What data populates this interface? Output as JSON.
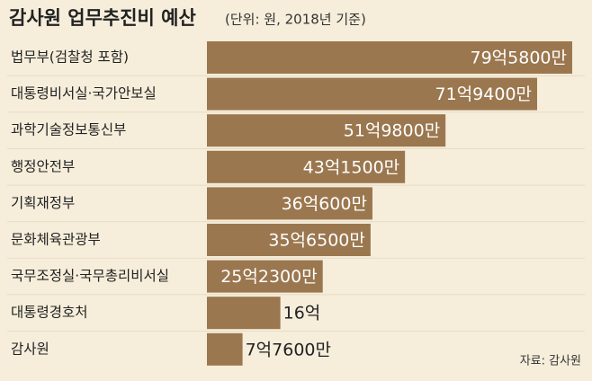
{
  "chart_data": {
    "type": "bar",
    "orientation": "horizontal",
    "title": "감사원 업무추진비 예산",
    "subtitle": "(단위: 원, 2018년 기준)",
    "categories": [
      "법무부(검찰청 포함)",
      "대통령비서실·국가안보실",
      "과학기술정보통신부",
      "행정안전부",
      "기획재정부",
      "문화체육관광부",
      "국무조정실·국무총리비서실",
      "대통령경호처",
      "감사원"
    ],
    "values": [
      7958000000,
      7194000000,
      5198000000,
      4315000000,
      3606000000,
      3565000000,
      2523000000,
      1600000000,
      776000000
    ],
    "value_labels": [
      "79억5800만",
      "71억9400만",
      "51억9800만",
      "43억1500만",
      "36억600만",
      "35억6500만",
      "25억2300만",
      "16억",
      "7억7600만"
    ],
    "color": "#9b774f",
    "source": "자료: 감사원"
  }
}
